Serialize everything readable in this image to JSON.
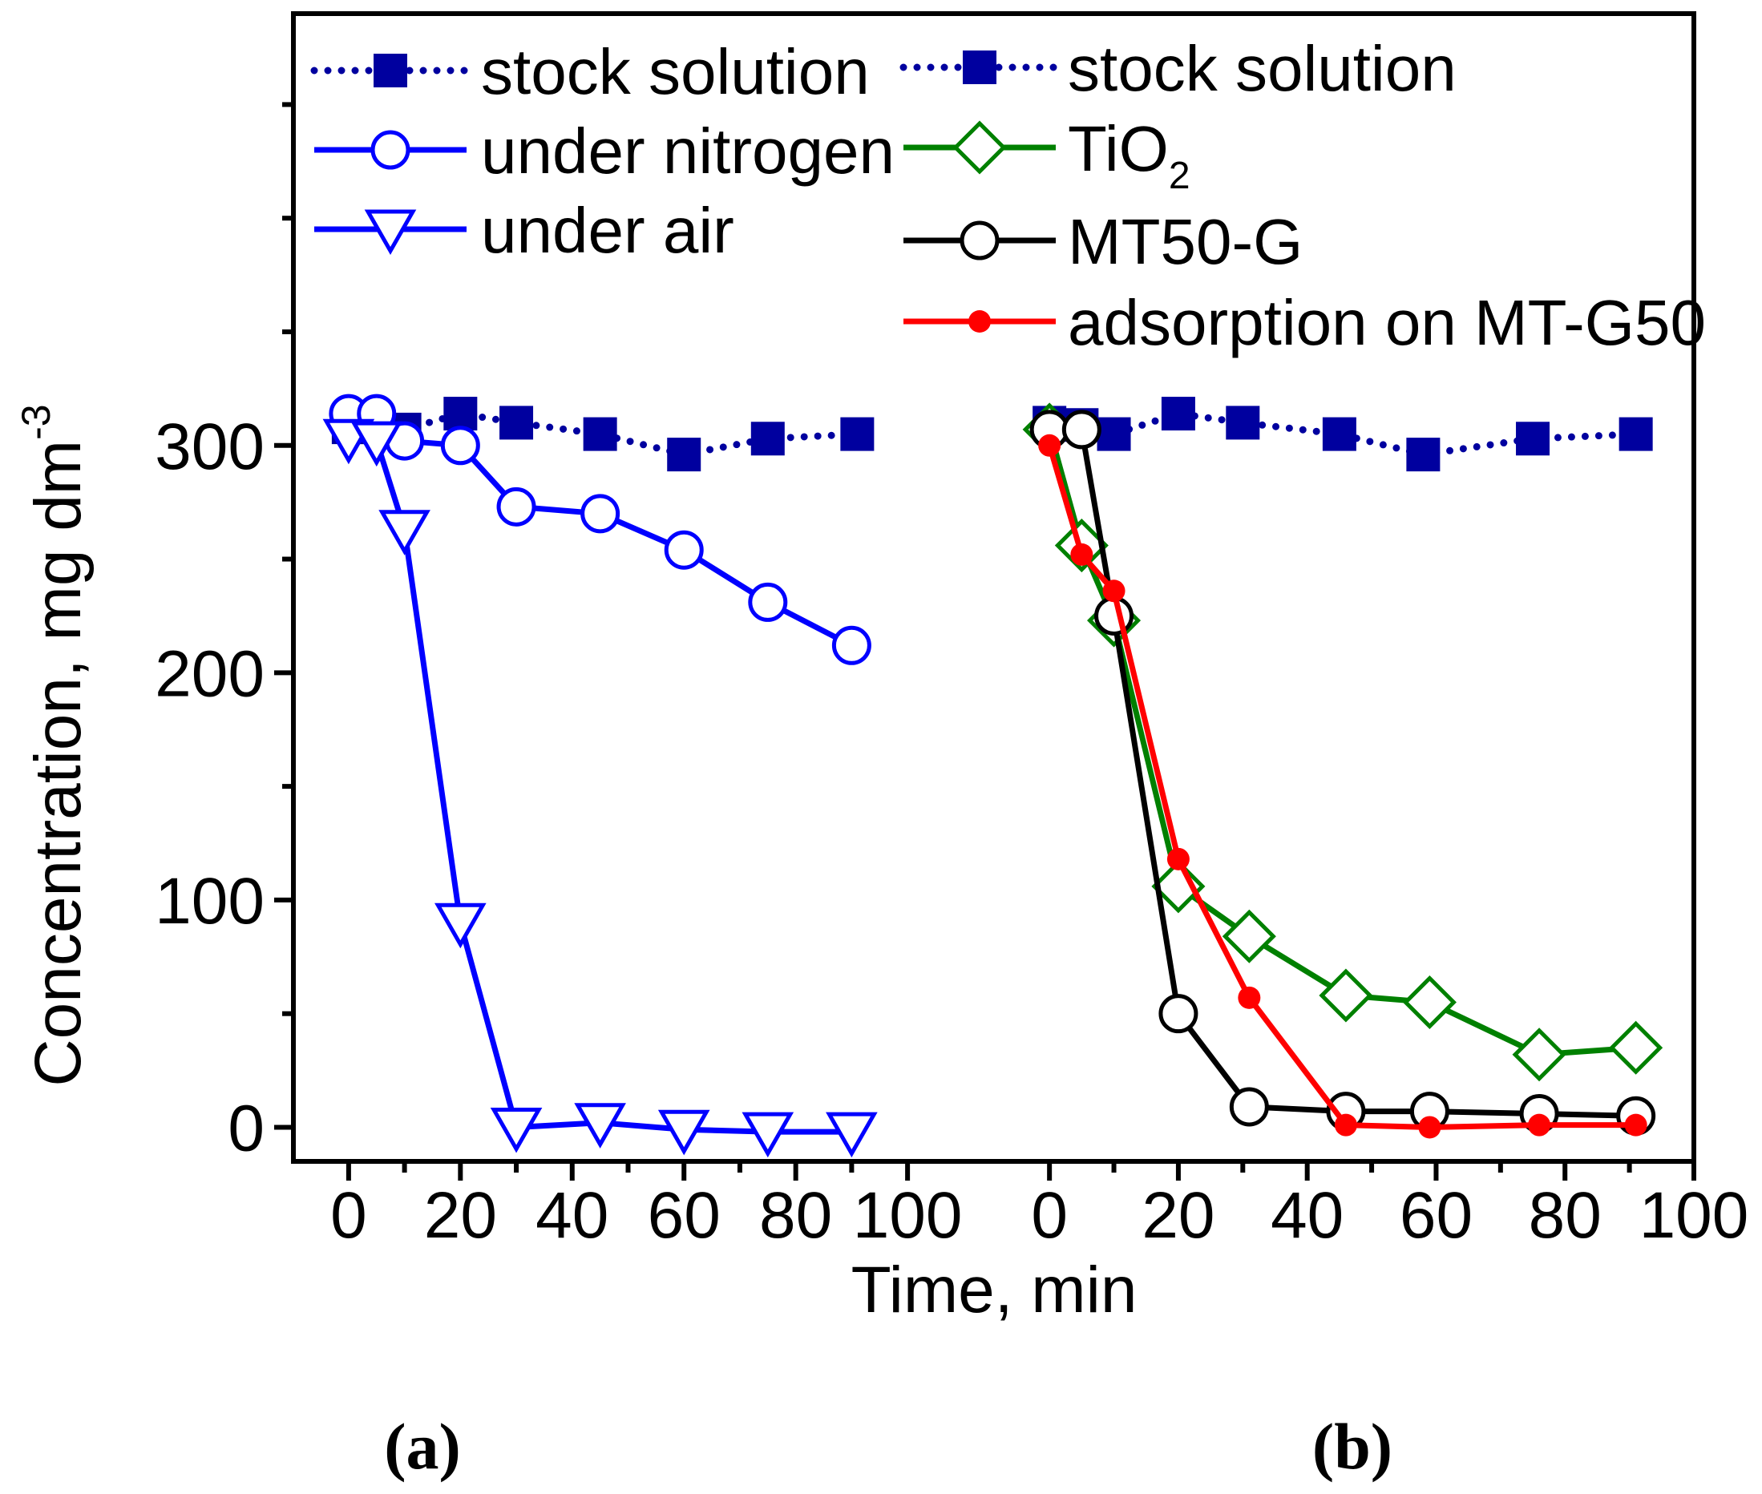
{
  "chart_data": {
    "type": "line",
    "ylabel": "Concentration, mg dm",
    "ylabel_sup": "-3",
    "xlabel": "Time, min",
    "ylim": [
      -15,
      490
    ],
    "yticks": [
      0,
      100,
      200,
      300
    ],
    "ytick_labels": [
      "0",
      "100",
      "200",
      "300"
    ],
    "colors": {
      "stock": "#00009f",
      "nitrogen": "#0000ff",
      "air": "#0000ff",
      "tio2": "#008000",
      "mt50g": "#000000",
      "adsorption": "#ff0000"
    },
    "panels": [
      {
        "label": "(a)",
        "xlim": [
          -4,
          104
        ],
        "xticks": [
          0,
          20,
          40,
          60,
          80,
          100
        ],
        "xtick_labels": [
          "0",
          "20",
          "40",
          "60",
          "80",
          "100"
        ],
        "series": [
          {
            "name": "stock solution",
            "key": "stock",
            "marker": "square-filled",
            "dash": "dotted",
            "x": [
              0,
              5,
              10,
              20,
              30,
              45,
              60,
              75,
              91
            ],
            "y": [
              308,
              308,
              307,
              314,
              310,
              305,
              296,
              303,
              305
            ]
          },
          {
            "name": "under nitrogen",
            "key": "nitrogen",
            "marker": "circle-open",
            "dash": "solid",
            "x": [
              0,
              5,
              10,
              20,
              30,
              45,
              60,
              75,
              90
            ],
            "y": [
              314,
              314,
              302,
              300,
              273,
              270,
              254,
              231,
              212
            ]
          },
          {
            "name": "under air",
            "key": "air",
            "marker": "triangle-down-open",
            "dash": "solid",
            "x": [
              0,
              5,
              10,
              20,
              30,
              45,
              60,
              75,
              90
            ],
            "y": [
              303,
              302,
              263,
              90,
              0,
              2,
              -1,
              -2,
              -2
            ]
          }
        ],
        "legend": [
          "stock solution",
          "under nitrogen",
          "under air"
        ]
      },
      {
        "label": "(b)",
        "xlim": [
          -4,
          100
        ],
        "xticks": [
          0,
          20,
          40,
          60,
          80,
          100
        ],
        "xtick_labels": [
          "0",
          "20",
          "40",
          "60",
          "80",
          "100"
        ],
        "series": [
          {
            "name": "stock solution",
            "key": "stock",
            "marker": "square-filled",
            "dash": "dotted",
            "x": [
              0,
              5,
              10,
              20,
              30,
              45,
              58,
              75,
              91
            ],
            "y": [
              310,
              309,
              305,
              314,
              310,
              305,
              296,
              303,
              305
            ]
          },
          {
            "name": "TiO2",
            "key": "tio2",
            "marker": "diamond-open",
            "dash": "solid",
            "x": [
              0,
              5,
              10,
              20,
              31,
              46,
              59,
              76,
              91
            ],
            "y": [
              307,
              256,
              223,
              106,
              84,
              58,
              55,
              32,
              35
            ]
          },
          {
            "name": "MT50-G",
            "key": "mt50g",
            "marker": "circle-open",
            "dash": "solid",
            "x": [
              0,
              5,
              10,
              20,
              31,
              46,
              59,
              76,
              91
            ],
            "y": [
              307,
              307,
              225,
              50,
              9,
              7,
              7,
              6,
              5
            ]
          },
          {
            "name": "adsorption on MT-G50",
            "key": "adsorption",
            "marker": "circle-filled-small",
            "dash": "solid",
            "x": [
              0,
              5,
              10,
              20,
              31,
              46,
              59,
              76,
              91
            ],
            "y": [
              300,
              252,
              236,
              118,
              57,
              1,
              0,
              1,
              1
            ]
          }
        ],
        "legend": [
          "stock solution",
          "TiO",
          "MT50-G",
          "adsorption on MT-G50"
        ],
        "legend_tio2_sub": "2"
      }
    ]
  }
}
